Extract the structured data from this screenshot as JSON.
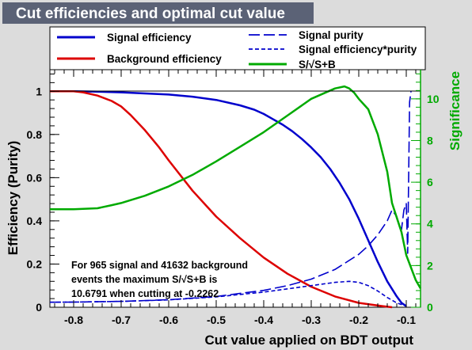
{
  "chart_data": {
    "type": "line",
    "title": "Cut efficiencies and optimal cut value",
    "xlabel": "Cut value applied on BDT output",
    "ylabel": "Efficiency (Purity)",
    "y2label": "Significance",
    "xlim": [
      -0.85,
      -0.07
    ],
    "ylim": [
      0,
      1.1
    ],
    "y2lim": [
      0,
      11.4
    ],
    "xticks": [
      -0.8,
      -0.7,
      -0.6,
      -0.5,
      -0.4,
      -0.3,
      -0.2,
      -0.1
    ],
    "xtick_labels": [
      "-0.8",
      "-0.7",
      "-0.6",
      "-0.5",
      "-0.4",
      "-0.3",
      "-0.2",
      "-0.1"
    ],
    "yticks": [
      0,
      0.2,
      0.4,
      0.6,
      0.8,
      1
    ],
    "ytick_labels": [
      "0",
      "0.2",
      "0.4",
      "0.6",
      "0.8",
      "1"
    ],
    "y2ticks": [
      0,
      2,
      4,
      6,
      8,
      10
    ],
    "y2tick_labels": [
      "0",
      "2",
      "4",
      "6",
      "8",
      "10"
    ],
    "grid": false,
    "legend_position": "top",
    "series": [
      {
        "name": "Signal efficiency",
        "color": "#0000cc",
        "dash": "solid",
        "axis": "left",
        "x": [
          -0.85,
          -0.8,
          -0.75,
          -0.7,
          -0.65,
          -0.6,
          -0.55,
          -0.5,
          -0.45,
          -0.42,
          -0.4,
          -0.38,
          -0.36,
          -0.34,
          -0.32,
          -0.3,
          -0.28,
          -0.26,
          -0.24,
          -0.22,
          -0.2,
          -0.18,
          -0.16,
          -0.14,
          -0.12,
          -0.11,
          -0.1
        ],
        "y": [
          1.0,
          1.0,
          0.998,
          0.995,
          0.99,
          0.985,
          0.975,
          0.96,
          0.935,
          0.915,
          0.895,
          0.87,
          0.845,
          0.815,
          0.78,
          0.74,
          0.695,
          0.64,
          0.575,
          0.5,
          0.41,
          0.31,
          0.21,
          0.12,
          0.05,
          0.02,
          0.005
        ]
      },
      {
        "name": "Background efficiency",
        "color": "#dd0000",
        "dash": "solid",
        "axis": "left",
        "x": [
          -0.85,
          -0.8,
          -0.78,
          -0.75,
          -0.72,
          -0.7,
          -0.68,
          -0.65,
          -0.62,
          -0.6,
          -0.55,
          -0.5,
          -0.45,
          -0.4,
          -0.35,
          -0.3,
          -0.25,
          -0.2,
          -0.15,
          -0.13
        ],
        "y": [
          1.0,
          1.0,
          0.995,
          0.98,
          0.955,
          0.93,
          0.89,
          0.82,
          0.74,
          0.68,
          0.54,
          0.42,
          0.32,
          0.23,
          0.155,
          0.095,
          0.05,
          0.02,
          0.005,
          0.0
        ]
      },
      {
        "name": "Signal purity",
        "color": "#0000cc",
        "dash": "longdash",
        "axis": "left",
        "x": [
          -0.85,
          -0.8,
          -0.7,
          -0.6,
          -0.5,
          -0.4,
          -0.35,
          -0.3,
          -0.25,
          -0.2,
          -0.18,
          -0.16,
          -0.14,
          -0.13,
          -0.12,
          -0.115,
          -0.11,
          -0.105,
          -0.1,
          -0.097,
          -0.095,
          -0.093,
          -0.09
        ],
        "y": [
          0.023,
          0.024,
          0.027,
          0.035,
          0.05,
          0.078,
          0.1,
          0.13,
          0.175,
          0.245,
          0.285,
          0.335,
          0.4,
          0.45,
          0.42,
          0.38,
          0.36,
          0.45,
          0.48,
          0.25,
          0.6,
          0.95,
          1.0
        ]
      },
      {
        "name": "Signal efficiency*purity",
        "color": "#0000cc",
        "dash": "shortdash",
        "axis": "left",
        "x": [
          -0.85,
          -0.8,
          -0.7,
          -0.6,
          -0.5,
          -0.4,
          -0.35,
          -0.3,
          -0.25,
          -0.22,
          -0.2,
          -0.18,
          -0.16,
          -0.14,
          -0.12,
          -0.1
        ],
        "y": [
          0.023,
          0.024,
          0.027,
          0.034,
          0.048,
          0.07,
          0.085,
          0.1,
          0.115,
          0.12,
          0.115,
          0.1,
          0.075,
          0.045,
          0.02,
          0.005
        ]
      },
      {
        "name": "S/√S+B",
        "color": "#00aa00",
        "dash": "solid",
        "axis": "right",
        "x": [
          -0.85,
          -0.8,
          -0.75,
          -0.72,
          -0.7,
          -0.65,
          -0.6,
          -0.55,
          -0.5,
          -0.45,
          -0.4,
          -0.35,
          -0.3,
          -0.25,
          -0.23,
          -0.22,
          -0.21,
          -0.2,
          -0.18,
          -0.16,
          -0.15,
          -0.14,
          -0.13,
          -0.12,
          -0.11,
          -0.1,
          -0.09,
          -0.08,
          -0.07
        ],
        "y": [
          4.7,
          4.7,
          4.75,
          4.9,
          5.0,
          5.35,
          5.8,
          6.35,
          7.0,
          7.7,
          8.4,
          9.2,
          10.0,
          10.5,
          10.6,
          10.5,
          10.3,
          10.0,
          9.5,
          8.3,
          7.4,
          6.5,
          5.0,
          4.3,
          3.6,
          2.5,
          1.9,
          1.3,
          0.9
        ]
      }
    ],
    "annotation": [
      "For 965 signal and 41632 background",
      "events the maximum S/√S+B is",
      "10.6791 when cutting at -0.2262"
    ]
  }
}
